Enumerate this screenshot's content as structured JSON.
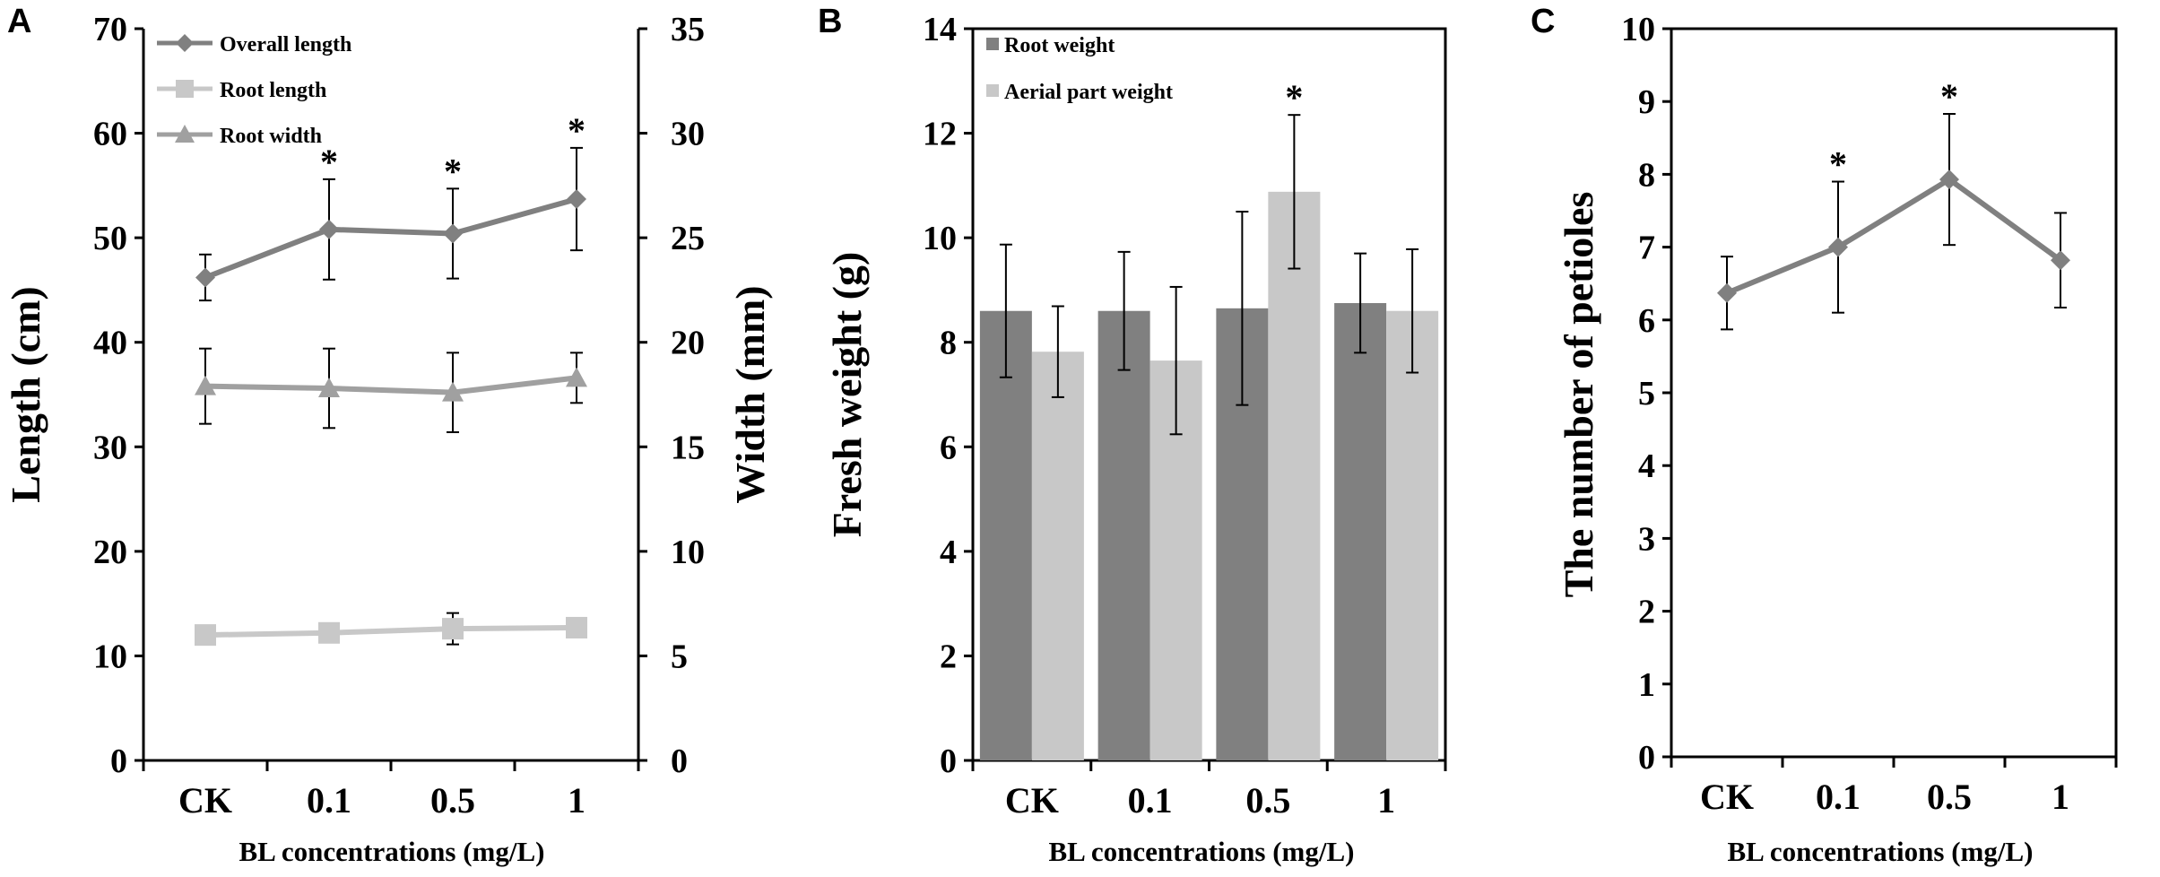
{
  "panels": [
    {
      "id": "A",
      "letter": "A",
      "type": "line",
      "xlabel": "BL concentrations (mg/L)",
      "ylabel": "Length (cm)",
      "y2label": "Width (mm)",
      "categories": [
        "CK",
        "0.1",
        "0.5",
        "1"
      ],
      "ylim": [
        0,
        70
      ],
      "yticks": [
        0,
        10,
        20,
        30,
        40,
        50,
        60,
        70
      ],
      "y2lim": [
        0,
        35
      ],
      "y2ticks": [
        0,
        5,
        10,
        15,
        20,
        25,
        30,
        35
      ],
      "series": [
        {
          "name": "Overall length",
          "axis": "left",
          "marker": "diamond",
          "color": "#808080",
          "values": [
            46.2,
            50.8,
            50.4,
            53.7
          ],
          "errors": [
            2.2,
            4.8,
            4.3,
            4.9
          ],
          "significant": [
            false,
            true,
            true,
            true
          ]
        },
        {
          "name": "Root length",
          "axis": "left",
          "marker": "square",
          "color": "#c8c8c8",
          "values": [
            12.0,
            12.2,
            12.6,
            12.7
          ],
          "errors": [
            0,
            0,
            1.5,
            0
          ],
          "significant": [
            false,
            false,
            false,
            false
          ]
        },
        {
          "name": "Root width",
          "axis": "right",
          "marker": "triangle",
          "color": "#a0a0a0",
          "values": [
            17.9,
            17.8,
            17.6,
            18.3
          ],
          "errors": [
            1.8,
            1.9,
            1.9,
            1.2
          ],
          "significant": [
            false,
            false,
            false,
            false
          ]
        }
      ]
    },
    {
      "id": "B",
      "letter": "B",
      "type": "bar",
      "xlabel": "BL concentrations (mg/L)",
      "ylabel": "Fresh weight (g)",
      "categories": [
        "CK",
        "0.1",
        "0.5",
        "1"
      ],
      "ylim": [
        0,
        14
      ],
      "yticks": [
        0,
        2,
        4,
        6,
        8,
        10,
        12,
        14
      ],
      "series": [
        {
          "name": "Root weight",
          "color": "#808080",
          "values": [
            8.6,
            8.6,
            8.65,
            8.75
          ],
          "errors": [
            1.27,
            1.13,
            1.85,
            0.95
          ],
          "significant": [
            false,
            false,
            false,
            false
          ]
        },
        {
          "name": "Aerial part weight",
          "color": "#c8c8c8",
          "values": [
            7.82,
            7.65,
            10.88,
            8.6
          ],
          "errors": [
            0.87,
            1.41,
            1.47,
            1.18
          ],
          "significant": [
            false,
            false,
            true,
            false
          ]
        }
      ]
    },
    {
      "id": "C",
      "letter": "C",
      "type": "line",
      "xlabel": "BL concentrations (mg/L)",
      "ylabel": "The number of petioles",
      "categories": [
        "CK",
        "0.1",
        "0.5",
        "1"
      ],
      "ylim": [
        0,
        10
      ],
      "yticks": [
        0,
        1,
        2,
        3,
        4,
        5,
        6,
        7,
        8,
        9,
        10
      ],
      "series": [
        {
          "name": "Number of petioles",
          "marker": "diamond",
          "color": "#808080",
          "values": [
            6.37,
            7.0,
            7.93,
            6.82
          ],
          "errors": [
            0.5,
            0.9,
            0.9,
            0.65
          ],
          "significant": [
            false,
            true,
            true,
            false
          ]
        }
      ]
    }
  ],
  "significance_mark": "*"
}
